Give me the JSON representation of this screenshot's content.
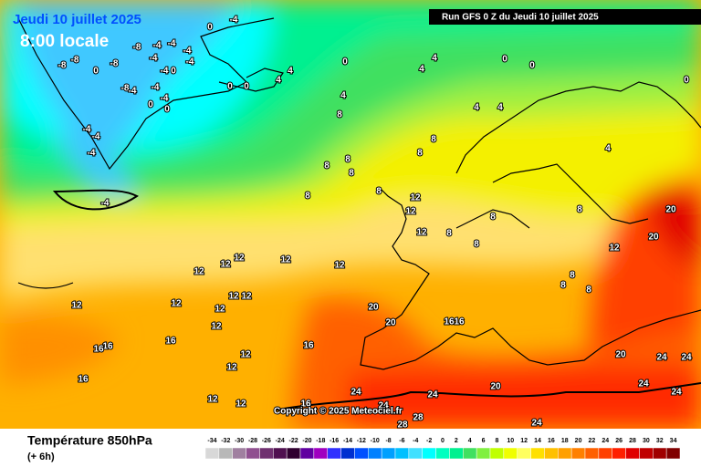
{
  "header": {
    "date": "Jeudi 10 juillet 2025",
    "time": "8:00 locale",
    "run": "Run GFS 0 Z du Jeudi 10 juillet 2025",
    "copyright": "Copyright © 2025 Meteociel.fr"
  },
  "footer": {
    "title": "Température 850hPa",
    "step": "(+ 6h)"
  },
  "legend": {
    "values": [
      -34,
      -32,
      -30,
      -28,
      -26,
      -24,
      -22,
      -20,
      -18,
      -16,
      -14,
      -12,
      -10,
      -8,
      -6,
      -4,
      -2,
      0,
      2,
      4,
      6,
      8,
      10,
      12,
      14,
      16,
      18,
      20,
      22,
      24,
      26,
      28,
      30,
      32,
      34
    ],
    "colors": [
      "#d8d8d8",
      "#b8b8b8",
      "#a080a0",
      "#905090",
      "#703070",
      "#501050",
      "#300030",
      "#6000a0",
      "#a000c0",
      "#3030ff",
      "#0030d0",
      "#0050ff",
      "#0080ff",
      "#00a0ff",
      "#00c0ff",
      "#40e0ff",
      "#00ffff",
      "#00ffc0",
      "#00f090",
      "#40e060",
      "#80f040",
      "#c0ff00",
      "#f0ff00",
      "#ffff60",
      "#ffe000",
      "#ffc000",
      "#ffa000",
      "#ff8000",
      "#ff6000",
      "#ff4000",
      "#ff2000",
      "#e00000",
      "#c00000",
      "#a00000",
      "#800000"
    ]
  },
  "contour_labels": [
    -4,
    0,
    -8,
    -4,
    -4,
    -4,
    -8,
    -8,
    0,
    -8,
    -4,
    -4,
    -4,
    0,
    0,
    -8,
    -4,
    -4,
    0,
    -4,
    0,
    0,
    0,
    -4,
    -4,
    -4,
    -4,
    4,
    4,
    4,
    4,
    0,
    0,
    4,
    8,
    4,
    4,
    4,
    0,
    8,
    8,
    8,
    8,
    8,
    8,
    8,
    12,
    12,
    12,
    8,
    8,
    8,
    8,
    12,
    20,
    20,
    12,
    12,
    12,
    12,
    12,
    12,
    12,
    12,
    12,
    12,
    12,
    8,
    8,
    8,
    20,
    20,
    16,
    16,
    16,
    16,
    16,
    16,
    12,
    12,
    16,
    12,
    12,
    16,
    20,
    24,
    24,
    20,
    24,
    24,
    24,
    24,
    24,
    28,
    28,
    24
  ]
}
